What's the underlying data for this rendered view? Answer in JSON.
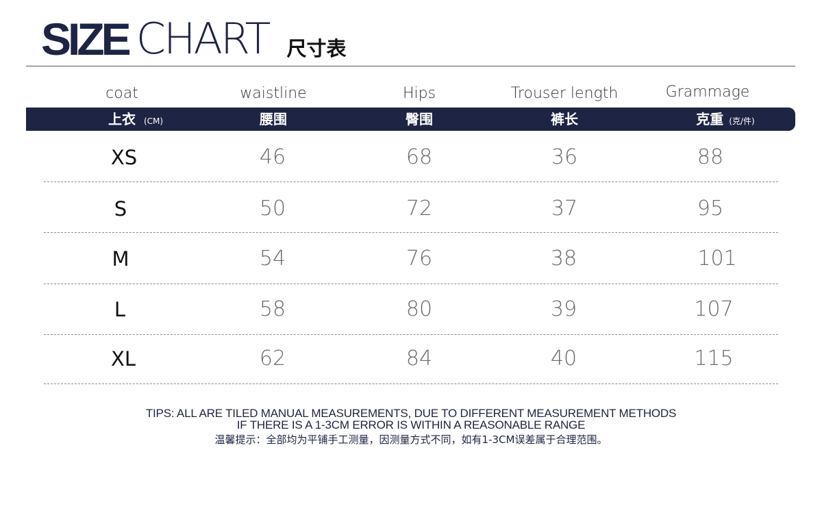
{
  "title": {
    "bold": "SIZE",
    "light": "CHART",
    "cn": "尺寸表"
  },
  "columns": [
    {
      "en": "coat",
      "cn": "上衣",
      "unit": "(CM)"
    },
    {
      "en": "waistline",
      "cn": "腰围",
      "unit": ""
    },
    {
      "en": "Hips",
      "cn": "臀围",
      "unit": ""
    },
    {
      "en": "Trouser length",
      "cn": "裤长",
      "unit": ""
    },
    {
      "en": "Grammage",
      "cn": "克重",
      "unit": "(克/件)"
    }
  ],
  "rows": [
    {
      "size": "XS",
      "waistline": "46",
      "hips": "68",
      "trouser_length": "36",
      "grammage": "88"
    },
    {
      "size": "S",
      "waistline": "50",
      "hips": "72",
      "trouser_length": "37",
      "grammage": "95"
    },
    {
      "size": "M",
      "waistline": "54",
      "hips": "76",
      "trouser_length": "38",
      "grammage": "101"
    },
    {
      "size": "L",
      "waistline": "58",
      "hips": "80",
      "trouser_length": "39",
      "grammage": "107"
    },
    {
      "size": "XL",
      "waistline": "62",
      "hips": "84",
      "trouser_length": "40",
      "grammage": "115"
    }
  ],
  "tips": {
    "line1": "TIPS: ALL ARE TILED MANUAL MEASUREMENTS, DUE TO DIFFERENT MEASUREMENT METHODS",
    "line2": "IF THERE IS A 1-3CM ERROR IS WITHIN A REASONABLE RANGE",
    "line3": "温馨提示：全部均为平铺手工测量，因测量方式不同，如有1-3CM误差属于合理范围。"
  },
  "colors": {
    "accent": "#1e2443",
    "header_text": "#ffffff",
    "value_text": "#6b6b6b"
  }
}
